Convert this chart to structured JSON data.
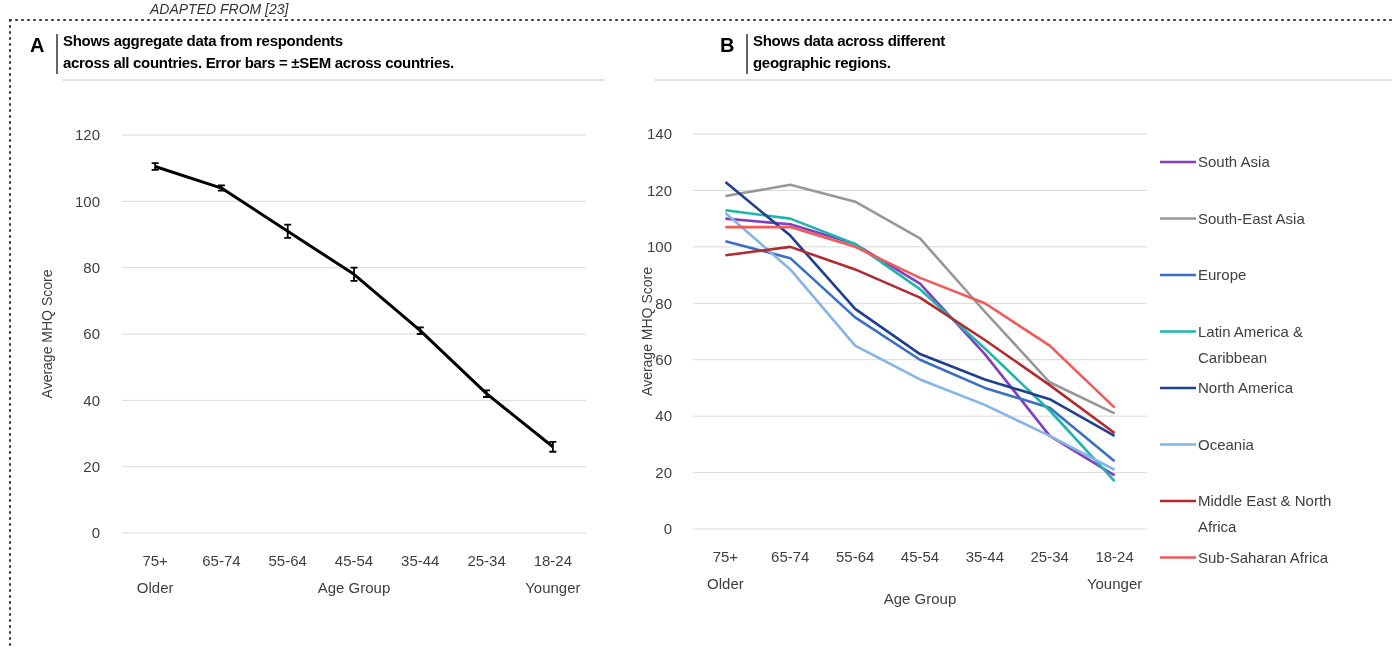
{
  "chart_data": [
    {
      "type": "line",
      "title": "A",
      "subtitle": "Shows aggregate data from respondents\nacross all countries. Error bars = ±SEM across countries.",
      "annotations": [
        "ADAPTED FROM [23]"
      ],
      "xlabel": "Age Group",
      "ylabel": "Average MHQ Score",
      "categories": [
        "75+\nOlder",
        "65-74",
        "55-64",
        "45-54",
        "35-44",
        "25-34",
        "18-24\nYounger"
      ],
      "values": [
        110.5,
        104,
        91,
        78,
        61,
        42,
        26
      ],
      "errors": [
        1,
        0.8,
        2,
        2,
        1,
        1,
        1.5
      ],
      "color": "#000000",
      "ylim": [
        0,
        120
      ],
      "yticks": [
        0,
        20,
        40,
        60,
        80,
        100,
        120
      ],
      "grid": "y",
      "legend": false
    },
    {
      "type": "line",
      "title": "B",
      "subtitle": "Shows data across different\ngeographic regions.",
      "xlabel": "Age Group",
      "ylabel": "Average MHQ Score",
      "categories": [
        "75+\nOlder",
        "65-74",
        "55-64",
        "45-54",
        "35-44",
        "25-34",
        "18-24\nYounger"
      ],
      "series": [
        {
          "name": "South Asia",
          "color": "#7f3fbf",
          "values": [
            110,
            108,
            101,
            87,
            62,
            33,
            19
          ]
        },
        {
          "name": "South-East Asia",
          "color": "#979797",
          "values": [
            118,
            122,
            116,
            103,
            77,
            52,
            41
          ]
        },
        {
          "name": "Europe",
          "color": "#3a6fc4",
          "values": [
            102,
            96,
            75,
            60,
            50,
            43,
            24
          ]
        },
        {
          "name": "Latin America & Caribbean",
          "color": "#1fb5ad",
          "values": [
            113,
            110,
            101,
            85,
            64,
            42,
            17
          ]
        },
        {
          "name": "North America",
          "color": "#1f3f8f",
          "values": [
            123,
            104,
            78,
            62,
            53,
            46,
            33
          ]
        },
        {
          "name": "Oceania",
          "color": "#86b4e6",
          "values": [
            112,
            92,
            65,
            53,
            44,
            33,
            21
          ]
        },
        {
          "name": "Middle East & North Africa",
          "color": "#b02a30",
          "values": [
            97,
            100,
            92,
            82,
            67,
            51,
            34
          ]
        },
        {
          "name": "Sub-Saharan Africa",
          "color": "#f25a5a",
          "values": [
            107,
            107,
            100,
            89,
            80,
            65,
            43
          ]
        }
      ],
      "ylim": [
        0,
        140
      ],
      "yticks": [
        0,
        20,
        40,
        60,
        80,
        100,
        120,
        140
      ],
      "grid": "y",
      "legend": "right"
    }
  ]
}
